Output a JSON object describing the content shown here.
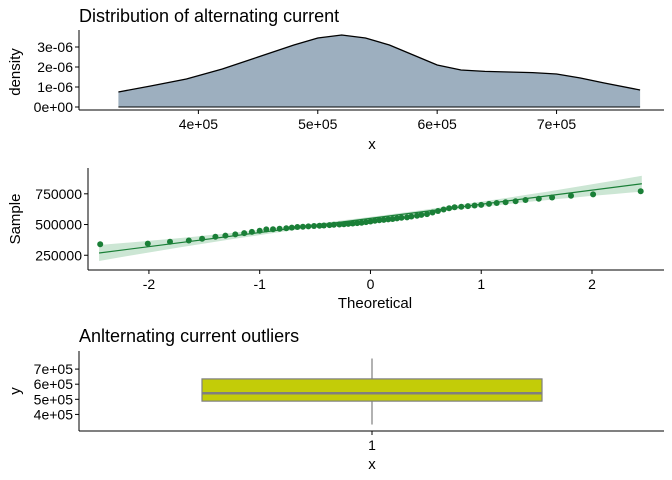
{
  "chart_data": [
    {
      "type": "area",
      "title": "Distribution of alternating current",
      "xlabel": "x",
      "ylabel": "density",
      "xlim": [
        300000,
        790000
      ],
      "ylim": [
        0,
        3.6e-06
      ],
      "x_ticks": [
        400000,
        500000,
        600000,
        700000
      ],
      "x_tick_labels": [
        "4e+05",
        "5e+05",
        "6e+05",
        "7e+05"
      ],
      "y_ticks": [
        0,
        1e-06,
        2e-06,
        3e-06
      ],
      "y_tick_labels": [
        "0e+00",
        "1e-06",
        "2e-06",
        "3e-06"
      ],
      "fill_color": "#9dafbf",
      "line_color": "#000000",
      "grid": false,
      "x": [
        333000,
        360000,
        390000,
        420000,
        450000,
        480000,
        500000,
        520000,
        540000,
        560000,
        580000,
        600000,
        620000,
        640000,
        660000,
        680000,
        700000,
        720000,
        740000,
        770000
      ],
      "y": [
        7.5e-07,
        1.05e-06,
        1.4e-06,
        1.9e-06,
        2.5e-06,
        3.1e-06,
        3.45e-06,
        3.6e-06,
        3.45e-06,
        3.1e-06,
        2.6e-06,
        2.1e-06,
        1.85e-06,
        1.78e-06,
        1.75e-06,
        1.72e-06,
        1.65e-06,
        1.45e-06,
        1.2e-06,
        8.5e-07
      ]
    },
    {
      "type": "scatter",
      "xlabel": "Theoretical",
      "ylabel": "Sample",
      "xlim": [
        -2.55,
        2.65
      ],
      "ylim": [
        130000,
        960000
      ],
      "x_ticks": [
        -2,
        -1,
        0,
        1,
        2
      ],
      "x_tick_labels": [
        "-2",
        "-1",
        "0",
        "1",
        "2"
      ],
      "y_ticks": [
        250000,
        500000,
        750000
      ],
      "y_tick_labels": [
        "250000",
        "500000",
        "750000"
      ],
      "point_color": "#1a7f37",
      "band_color": "#cce6d4",
      "grid": false,
      "line": {
        "intercept": 550000,
        "slope": 115000
      },
      "band_halfwidth_extreme": 65000,
      "band_halfwidth_center": 12000,
      "x": [
        -2.44,
        -2.01,
        -1.81,
        -1.64,
        -1.52,
        -1.4,
        -1.31,
        -1.22,
        -1.14,
        -1.07,
        -1.0,
        -0.94,
        -0.88,
        -0.82,
        -0.76,
        -0.71,
        -0.66,
        -0.61,
        -0.56,
        -0.51,
        -0.46,
        -0.42,
        -0.37,
        -0.33,
        -0.28,
        -0.24,
        -0.2,
        -0.16,
        -0.12,
        -0.08,
        -0.04,
        0.0,
        0.04,
        0.08,
        0.12,
        0.16,
        0.2,
        0.24,
        0.28,
        0.33,
        0.37,
        0.42,
        0.46,
        0.51,
        0.56,
        0.61,
        0.66,
        0.71,
        0.76,
        0.82,
        0.88,
        0.94,
        1.0,
        1.07,
        1.14,
        1.22,
        1.31,
        1.4,
        1.52,
        1.64,
        1.81,
        2.01,
        2.44
      ],
      "y": [
        340000,
        345000,
        360000,
        370000,
        385000,
        400000,
        410000,
        420000,
        430000,
        440000,
        450000,
        460000,
        462000,
        465000,
        470000,
        475000,
        480000,
        482000,
        485000,
        488000,
        490000,
        492000,
        495000,
        498000,
        500000,
        502000,
        505000,
        508000,
        512000,
        515000,
        520000,
        525000,
        530000,
        535000,
        538000,
        542000,
        545000,
        550000,
        555000,
        558000,
        565000,
        572000,
        578000,
        585000,
        598000,
        610000,
        622000,
        632000,
        640000,
        645000,
        650000,
        655000,
        660000,
        668000,
        675000,
        682000,
        690000,
        700000,
        710000,
        720000,
        735000,
        745000,
        770000
      ]
    },
    {
      "type": "box",
      "title": "Anlternating current outliers",
      "xlabel": "x",
      "ylabel": "y",
      "categories": [
        "1"
      ],
      "ylim": [
        330000,
        780000
      ],
      "y_ticks": [
        400000,
        500000,
        600000,
        700000
      ],
      "y_tick_labels": [
        "4e+05",
        "5e+05",
        "6e+05",
        "7e+05"
      ],
      "box_color": "#c3cc08",
      "median_color": "#7f7f7f",
      "whisker_color": "#7f7f7f",
      "grid": false,
      "min": 333000,
      "q1": 488000,
      "median": 540000,
      "q3": 635000,
      "max": 770000
    }
  ]
}
